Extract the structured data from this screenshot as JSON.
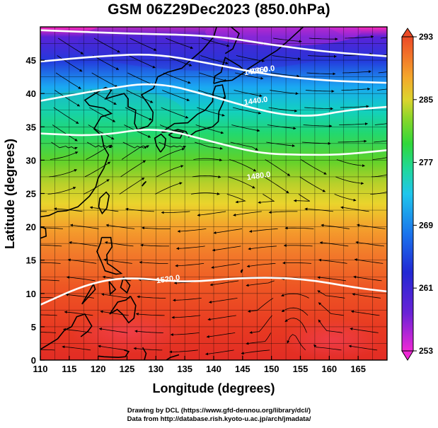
{
  "title": "GSM 06Z29Dec2023 (850.0hPa)",
  "credits": {
    "line1": "Drawing by DCL (https://www.gfd-dennou.org/library/dcl/)",
    "line2": "Data from http://database.rish.kyoto-u.ac.jp/arch/jmadata/"
  },
  "axes": {
    "xlabel": "Longitude (degrees)",
    "ylabel": "Latitude  (degrees)",
    "xlim": [
      110,
      170
    ],
    "ylim": [
      0,
      50
    ],
    "xticks": [
      110,
      115,
      120,
      125,
      130,
      135,
      140,
      145,
      150,
      155,
      160,
      165
    ],
    "yticks": [
      0,
      5,
      10,
      15,
      20,
      25,
      30,
      35,
      40,
      45
    ]
  },
  "colorbar": {
    "labels": [
      293,
      285,
      277,
      269,
      261,
      253
    ],
    "range": [
      253,
      293
    ],
    "colors": [
      "#d81fc8",
      "#7a1fd8",
      "#2a22d4",
      "#1a4ae8",
      "#1e8ef0",
      "#22c4ea",
      "#20d8b0",
      "#22d870",
      "#3ad82a",
      "#7ed62a",
      "#c6d22c",
      "#eec030",
      "#f4962c",
      "#f26a28",
      "#ec4424",
      "#e62a22"
    ]
  },
  "chart_data": {
    "type": "heatmap",
    "title": "GSM 06Z29Dec2023 (850.0hPa)",
    "xlabel": "Longitude (degrees)",
    "ylabel": "Latitude  (degrees)",
    "xlim": [
      110,
      170
    ],
    "ylim": [
      0,
      50
    ],
    "colorbar_range": [
      253,
      293
    ],
    "temperature_field_approx": [
      {
        "lat": 48,
        "value": 258
      },
      {
        "lat": 45,
        "value": 263
      },
      {
        "lat": 40,
        "value": 270
      },
      {
        "lat": 35,
        "value": 275
      },
      {
        "lat": 30,
        "value": 280
      },
      {
        "lat": 25,
        "value": 285
      },
      {
        "lat": 20,
        "value": 288
      },
      {
        "lat": 15,
        "value": 290
      },
      {
        "lat": 10,
        "value": 291
      },
      {
        "lat": 5,
        "value": 292
      },
      {
        "lat": 0,
        "value": 292
      }
    ],
    "height_contours": [
      {
        "label": "1360.0",
        "points": [
          [
            110,
            49.5
          ],
          [
            125,
            49
          ],
          [
            140,
            48.7
          ],
          [
            150,
            47.3
          ],
          [
            160,
            46.2
          ],
          [
            170,
            45.6
          ]
        ]
      },
      {
        "label": "1400.0",
        "points": [
          [
            110,
            44.8
          ],
          [
            120,
            45.6
          ],
          [
            130,
            46.0
          ],
          [
            140,
            44.4
          ],
          [
            150,
            42.7
          ],
          [
            160,
            41.9
          ],
          [
            170,
            41.6
          ]
        ]
      },
      {
        "label": "1440.0",
        "points": [
          [
            110,
            38.9
          ],
          [
            120,
            40.5
          ],
          [
            130,
            41.8
          ],
          [
            140,
            39.5
          ],
          [
            150,
            37.0
          ],
          [
            157,
            36.5
          ],
          [
            163,
            37.5
          ],
          [
            170,
            38.0
          ]
        ]
      },
      {
        "label": "1480.0",
        "points": [
          [
            110,
            34.0
          ],
          [
            120,
            33.6
          ],
          [
            130,
            35.0
          ],
          [
            140,
            32.7
          ],
          [
            148,
            31.0
          ],
          [
            155,
            30.8
          ],
          [
            162,
            30.8
          ],
          [
            170,
            31.5
          ]
        ]
      },
      {
        "label": "1520.0",
        "points": [
          [
            110,
            8.3
          ],
          [
            118,
            11.4
          ],
          [
            125,
            12.5
          ],
          [
            135,
            11.6
          ],
          [
            145,
            12.4
          ],
          [
            155,
            12.3
          ],
          [
            165,
            10.8
          ],
          [
            170,
            10.3
          ]
        ]
      }
    ],
    "vectors": "850 hPa wind streamlines (arrow-headed)"
  }
}
